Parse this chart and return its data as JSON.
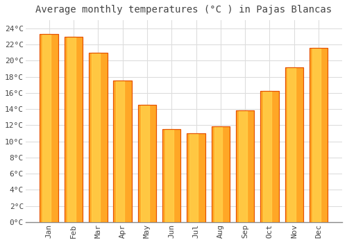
{
  "title": "Average monthly temperatures (°C ) in Pajas Blancas",
  "months": [
    "Jan",
    "Feb",
    "Mar",
    "Apr",
    "May",
    "Jun",
    "Jul",
    "Aug",
    "Sep",
    "Oct",
    "Nov",
    "Dec"
  ],
  "temperatures": [
    23.3,
    22.9,
    21.0,
    17.5,
    14.5,
    11.5,
    11.0,
    11.9,
    13.8,
    16.2,
    19.2,
    21.6
  ],
  "bar_color_main": "#FFA726",
  "bar_color_light": "#FFD54F",
  "bar_color_dark": "#FB8C00",
  "bar_edge_color": "#E65100",
  "background_color": "#FFFFFF",
  "plot_bg_color": "#FFFFFF",
  "grid_color": "#DDDDDD",
  "text_color": "#444444",
  "ylim": [
    0,
    25
  ],
  "yticks": [
    0,
    2,
    4,
    6,
    8,
    10,
    12,
    14,
    16,
    18,
    20,
    22,
    24
  ],
  "ytick_labels": [
    "0°C",
    "2°C",
    "4°C",
    "6°C",
    "8°C",
    "10°C",
    "12°C",
    "14°C",
    "16°C",
    "18°C",
    "20°C",
    "22°C",
    "24°C"
  ],
  "title_fontsize": 10,
  "tick_fontsize": 8,
  "figsize": [
    5.0,
    3.5
  ],
  "dpi": 100,
  "bar_width": 0.75
}
